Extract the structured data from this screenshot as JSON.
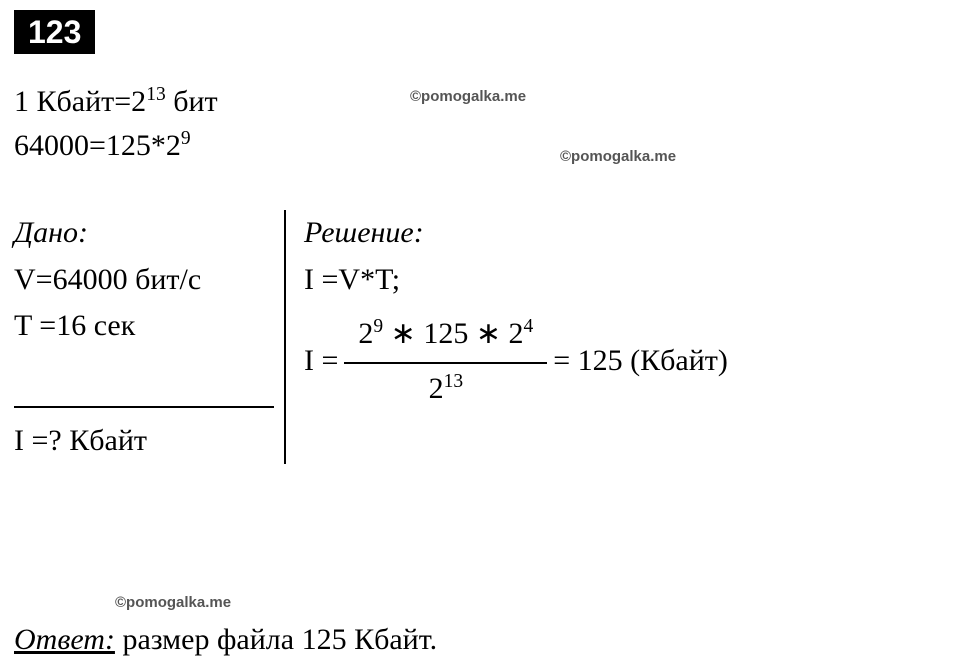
{
  "badge": "123",
  "intro": {
    "line1_pre": "1 Кбайт=2",
    "line1_exp": "13",
    "line1_post": " бит",
    "line2_pre": "64000=125*2",
    "line2_exp": "9"
  },
  "watermarks": {
    "text": "©pomogalka.me"
  },
  "given": {
    "title": "Дано:",
    "v": "V=64000 бит/с",
    "t": "T =16 сек",
    "find": "I =? Кбайт"
  },
  "solution": {
    "title": "Решение:",
    "formula": "I =V*T;",
    "lhs": "I =",
    "num_a": "2",
    "num_a_exp": "9",
    "star1": " ∗ ",
    "num_b": "125",
    "star2": " ∗ ",
    "num_c": "2",
    "num_c_exp": "4",
    "den_a": "2",
    "den_exp": "13",
    "result": "= 125 (Кбайт)"
  },
  "answer": {
    "label": "Ответ:",
    "text": " размер файла 125 Кбайт."
  }
}
